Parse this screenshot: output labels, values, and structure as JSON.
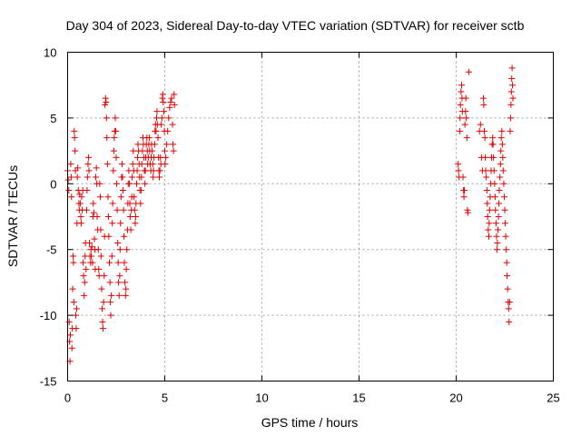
{
  "chart_data": {
    "type": "scatter",
    "title": "Day 304 of 2023, Sidereal Day-to-day VTEC variation (SDTVAR) for receiver sctb",
    "xlabel": "GPS time / hours",
    "ylabel": "SDTVAR / TECUs",
    "xlim": [
      0,
      25
    ],
    "ylim": [
      -15,
      10
    ],
    "xticks": [
      0,
      5,
      10,
      15,
      20,
      25
    ],
    "yticks": [
      -15,
      -10,
      -5,
      0,
      5,
      10
    ],
    "grid": true,
    "marker": "+",
    "color": "#e00000",
    "series": [
      {
        "name": "SDTVAR",
        "points": [
          [
            0.0,
            1.0
          ],
          [
            0.03,
            0.3
          ],
          [
            0.06,
            -0.5
          ],
          [
            0.08,
            -10.5
          ],
          [
            0.1,
            -12.0
          ],
          [
            0.12,
            -13.5
          ],
          [
            0.14,
            -11.5
          ],
          [
            0.16,
            1.5
          ],
          [
            0.18,
            0.5
          ],
          [
            0.2,
            -1.0
          ],
          [
            0.22,
            -12.5
          ],
          [
            0.24,
            -11.0
          ],
          [
            0.26,
            -8.0
          ],
          [
            0.28,
            -5.5
          ],
          [
            0.3,
            -6.0
          ],
          [
            0.32,
            -9.0
          ],
          [
            0.34,
            4.0
          ],
          [
            0.36,
            3.5
          ],
          [
            0.38,
            2.5
          ],
          [
            0.4,
            1.0
          ],
          [
            0.42,
            -10.0
          ],
          [
            0.44,
            -11.0
          ],
          [
            0.46,
            -9.5
          ],
          [
            0.48,
            -3.0
          ],
          [
            0.5,
            0.5
          ],
          [
            0.52,
            1.2
          ],
          [
            0.55,
            -0.5
          ],
          [
            0.58,
            -1.5
          ],
          [
            0.6,
            -2.0
          ],
          [
            0.62,
            -0.8
          ],
          [
            0.65,
            -1.5
          ],
          [
            0.68,
            -2.5
          ],
          [
            0.7,
            -3.0
          ],
          [
            0.72,
            -1.0
          ],
          [
            0.75,
            -2.0
          ],
          [
            0.78,
            -0.5
          ],
          [
            0.8,
            -6.0
          ],
          [
            0.82,
            -7.0
          ],
          [
            0.85,
            -8.5
          ],
          [
            0.88,
            -7.5
          ],
          [
            0.9,
            -5.5
          ],
          [
            0.92,
            -4.5
          ],
          [
            0.95,
            -6.5
          ],
          [
            0.98,
            -2.0
          ],
          [
            1.0,
            -0.5
          ],
          [
            1.02,
            0.5
          ],
          [
            1.05,
            1.5
          ],
          [
            1.08,
            2.0
          ],
          [
            1.1,
            1.0
          ],
          [
            1.12,
            -4.5
          ],
          [
            1.15,
            -5.5
          ],
          [
            1.18,
            -6.0
          ],
          [
            1.2,
            -5.0
          ],
          [
            1.22,
            -5.5
          ],
          [
            1.25,
            -4.8
          ],
          [
            1.28,
            -6.0
          ],
          [
            1.3,
            -2.5
          ],
          [
            1.32,
            -1.5
          ],
          [
            1.35,
            -2.2
          ],
          [
            1.38,
            -4.2
          ],
          [
            1.4,
            -5.0
          ],
          [
            1.42,
            -6.5
          ],
          [
            1.45,
            0.5
          ],
          [
            1.48,
            1.2
          ],
          [
            1.5,
            0.0
          ],
          [
            1.52,
            -2.5
          ],
          [
            1.55,
            -3.5
          ],
          [
            1.58,
            -5.0
          ],
          [
            1.6,
            -6.5
          ],
          [
            1.62,
            -7.0
          ],
          [
            1.65,
            0.0
          ],
          [
            1.68,
            -1.0
          ],
          [
            1.7,
            -3.5
          ],
          [
            1.72,
            -5.5
          ],
          [
            1.75,
            -8.0
          ],
          [
            1.78,
            -9.5
          ],
          [
            1.8,
            -10.5
          ],
          [
            1.82,
            -11.0
          ],
          [
            1.85,
            -9.0
          ],
          [
            1.88,
            -7.0
          ],
          [
            1.9,
            -4.0
          ],
          [
            1.92,
            6.0
          ],
          [
            1.95,
            6.5
          ],
          [
            1.98,
            6.2
          ],
          [
            2.0,
            5.0
          ],
          [
            2.02,
            3.5
          ],
          [
            2.05,
            1.5
          ],
          [
            2.08,
            -1.0
          ],
          [
            2.1,
            -2.5
          ],
          [
            2.12,
            -4.0
          ],
          [
            2.15,
            -6.0
          ],
          [
            2.18,
            -7.5
          ],
          [
            2.2,
            -9.0
          ],
          [
            2.22,
            -10.0
          ],
          [
            2.25,
            -8.5
          ],
          [
            2.28,
            -5.5
          ],
          [
            2.3,
            -3.0
          ],
          [
            2.32,
            -1.5
          ],
          [
            2.35,
            1.0
          ],
          [
            2.38,
            2.5
          ],
          [
            2.4,
            3.5
          ],
          [
            2.42,
            4.0
          ],
          [
            2.45,
            5.0
          ],
          [
            2.48,
            4.0
          ],
          [
            2.5,
            2.0
          ],
          [
            2.52,
            0.0
          ],
          [
            2.55,
            -2.0
          ],
          [
            2.58,
            -4.5
          ],
          [
            2.6,
            -6.0
          ],
          [
            2.62,
            -7.5
          ],
          [
            2.65,
            -8.5
          ],
          [
            2.68,
            -7.0
          ],
          [
            2.7,
            -5.0
          ],
          [
            2.72,
            -3.0
          ],
          [
            2.75,
            -1.0
          ],
          [
            2.78,
            0.5
          ],
          [
            2.8,
            1.5
          ],
          [
            2.82,
            0.5
          ],
          [
            2.85,
            -0.5
          ],
          [
            2.88,
            -2.0
          ],
          [
            2.9,
            -4.0
          ],
          [
            2.92,
            -6.0
          ],
          [
            2.95,
            -7.5
          ],
          [
            2.98,
            -8.5
          ],
          [
            3.0,
            -8.0
          ],
          [
            3.02,
            -6.5
          ],
          [
            3.05,
            -5.0
          ],
          [
            3.08,
            -3.5
          ],
          [
            3.1,
            -1.5
          ],
          [
            3.12,
            0.0
          ],
          [
            3.15,
            1.0
          ],
          [
            3.18,
            0.0
          ],
          [
            3.2,
            -1.5
          ],
          [
            3.22,
            -2.5
          ],
          [
            3.25,
            -3.5
          ],
          [
            3.28,
            -2.0
          ],
          [
            3.3,
            -1.0
          ],
          [
            3.32,
            0.5
          ],
          [
            3.35,
            1.5
          ],
          [
            3.38,
            2.5
          ],
          [
            3.4,
            1.0
          ],
          [
            3.42,
            -1.0
          ],
          [
            3.45,
            -2.0
          ],
          [
            3.48,
            -3.0
          ],
          [
            3.5,
            -2.5
          ],
          [
            3.52,
            -1.5
          ],
          [
            3.55,
            0.0
          ],
          [
            3.58,
            1.0
          ],
          [
            3.6,
            2.0
          ],
          [
            3.62,
            3.0
          ],
          [
            3.65,
            2.5
          ],
          [
            3.68,
            1.5
          ],
          [
            3.7,
            0.5
          ],
          [
            3.72,
            -0.5
          ],
          [
            3.75,
            -1.5
          ],
          [
            3.78,
            -0.5
          ],
          [
            3.8,
            0.5
          ],
          [
            3.82,
            1.5
          ],
          [
            3.85,
            2.5
          ],
          [
            3.88,
            3.5
          ],
          [
            3.9,
            3.0
          ],
          [
            3.92,
            2.0
          ],
          [
            3.95,
            1.0
          ],
          [
            3.98,
            0.0
          ],
          [
            4.0,
            1.0
          ],
          [
            4.02,
            2.0
          ],
          [
            4.05,
            3.0
          ],
          [
            4.08,
            3.5
          ],
          [
            4.1,
            2.5
          ],
          [
            4.12,
            1.5
          ],
          [
            4.15,
            2.0
          ],
          [
            4.18,
            3.0
          ],
          [
            4.2,
            3.5
          ],
          [
            4.22,
            2.5
          ],
          [
            4.25,
            1.5
          ],
          [
            4.28,
            1.0
          ],
          [
            4.3,
            2.0
          ],
          [
            4.32,
            3.0
          ],
          [
            4.35,
            2.5
          ],
          [
            4.38,
            1.5
          ],
          [
            4.4,
            0.5
          ],
          [
            4.42,
            1.0
          ],
          [
            4.45,
            2.0
          ],
          [
            4.48,
            3.0
          ],
          [
            4.5,
            4.0
          ],
          [
            4.52,
            4.5
          ],
          [
            4.55,
            4.0
          ],
          [
            4.58,
            5.0
          ],
          [
            4.6,
            5.5
          ],
          [
            4.62,
            4.5
          ],
          [
            4.65,
            3.5
          ],
          [
            4.68,
            2.0
          ],
          [
            4.7,
            1.0
          ],
          [
            4.72,
            0.5
          ],
          [
            4.75,
            1.0
          ],
          [
            4.78,
            2.0
          ],
          [
            4.8,
            1.5
          ],
          [
            4.82,
            4.5
          ],
          [
            4.85,
            5.0
          ],
          [
            4.88,
            6.5
          ],
          [
            4.9,
            6.8
          ],
          [
            4.92,
            6.2
          ],
          [
            4.95,
            5.5
          ],
          [
            4.98,
            4.0
          ],
          [
            5.0,
            2.5
          ],
          [
            5.02,
            1.5
          ],
          [
            5.05,
            2.0
          ],
          [
            5.1,
            3.0
          ],
          [
            5.15,
            4.0
          ],
          [
            5.2,
            5.0
          ],
          [
            5.25,
            5.8
          ],
          [
            5.3,
            6.2
          ],
          [
            5.35,
            6.5
          ],
          [
            5.4,
            4.5
          ],
          [
            5.42,
            3.0
          ],
          [
            5.45,
            2.5
          ],
          [
            5.48,
            6.8
          ],
          [
            5.5,
            6.0
          ],
          [
            20.1,
            1.5
          ],
          [
            20.12,
            1.0
          ],
          [
            20.15,
            0.5
          ],
          [
            20.18,
            4.0
          ],
          [
            20.2,
            5.0
          ],
          [
            20.22,
            6.0
          ],
          [
            20.25,
            7.0
          ],
          [
            20.28,
            7.5
          ],
          [
            20.3,
            6.5
          ],
          [
            20.32,
            5.5
          ],
          [
            20.35,
            0.5
          ],
          [
            20.38,
            -0.5
          ],
          [
            20.4,
            -1.0
          ],
          [
            20.42,
            -0.5
          ],
          [
            20.45,
            4.5
          ],
          [
            20.48,
            5.5
          ],
          [
            20.5,
            6.5
          ],
          [
            20.52,
            5.0
          ],
          [
            20.55,
            3.5
          ],
          [
            20.58,
            -2.0
          ],
          [
            20.6,
            -2.2
          ],
          [
            20.65,
            8.5
          ],
          [
            21.2,
            4.0
          ],
          [
            21.25,
            4.5
          ],
          [
            21.3,
            2.0
          ],
          [
            21.35,
            1.0
          ],
          [
            21.4,
            6.5
          ],
          [
            21.42,
            6.0
          ],
          [
            21.45,
            4.0
          ],
          [
            21.48,
            3.5
          ],
          [
            21.5,
            2.0
          ],
          [
            21.52,
            1.0
          ],
          [
            21.55,
            0.5
          ],
          [
            21.58,
            -0.5
          ],
          [
            21.6,
            -1.5
          ],
          [
            21.62,
            -2.5
          ],
          [
            21.65,
            -3.5
          ],
          [
            21.68,
            -4.0
          ],
          [
            21.7,
            -3.0
          ],
          [
            21.72,
            -2.0
          ],
          [
            21.75,
            -1.0
          ],
          [
            21.78,
            0.0
          ],
          [
            21.8,
            1.0
          ],
          [
            21.82,
            2.0
          ],
          [
            21.85,
            3.0
          ],
          [
            21.88,
            3.5
          ],
          [
            21.9,
            3.0
          ],
          [
            21.92,
            2.0
          ],
          [
            21.95,
            1.0
          ],
          [
            21.98,
            0.0
          ],
          [
            22.0,
            -1.0
          ],
          [
            22.02,
            -2.0
          ],
          [
            22.05,
            -3.0
          ],
          [
            22.08,
            -4.0
          ],
          [
            22.1,
            -5.0
          ],
          [
            22.12,
            -4.5
          ],
          [
            22.15,
            -3.5
          ],
          [
            22.18,
            -2.5
          ],
          [
            22.2,
            -1.5
          ],
          [
            22.22,
            -0.5
          ],
          [
            22.25,
            0.5
          ],
          [
            22.28,
            1.5
          ],
          [
            22.3,
            2.5
          ],
          [
            22.32,
            3.5
          ],
          [
            22.35,
            4.0
          ],
          [
            22.38,
            3.0
          ],
          [
            22.4,
            2.0
          ],
          [
            22.42,
            1.0
          ],
          [
            22.45,
            0.0
          ],
          [
            22.48,
            -1.0
          ],
          [
            22.5,
            -2.0
          ],
          [
            22.52,
            -3.0
          ],
          [
            22.55,
            -4.0
          ],
          [
            22.58,
            -5.0
          ],
          [
            22.6,
            -6.0
          ],
          [
            22.62,
            -7.0
          ],
          [
            22.65,
            -8.0
          ],
          [
            22.68,
            -9.0
          ],
          [
            22.7,
            -9.5
          ],
          [
            22.72,
            -10.5
          ],
          [
            22.75,
            -9.0
          ],
          [
            22.78,
            4.0
          ],
          [
            22.8,
            5.0
          ],
          [
            22.82,
            6.0
          ],
          [
            22.84,
            7.0
          ],
          [
            22.86,
            8.0
          ],
          [
            22.88,
            8.8
          ],
          [
            22.9,
            7.5
          ],
          [
            22.92,
            6.5
          ]
        ]
      }
    ]
  }
}
